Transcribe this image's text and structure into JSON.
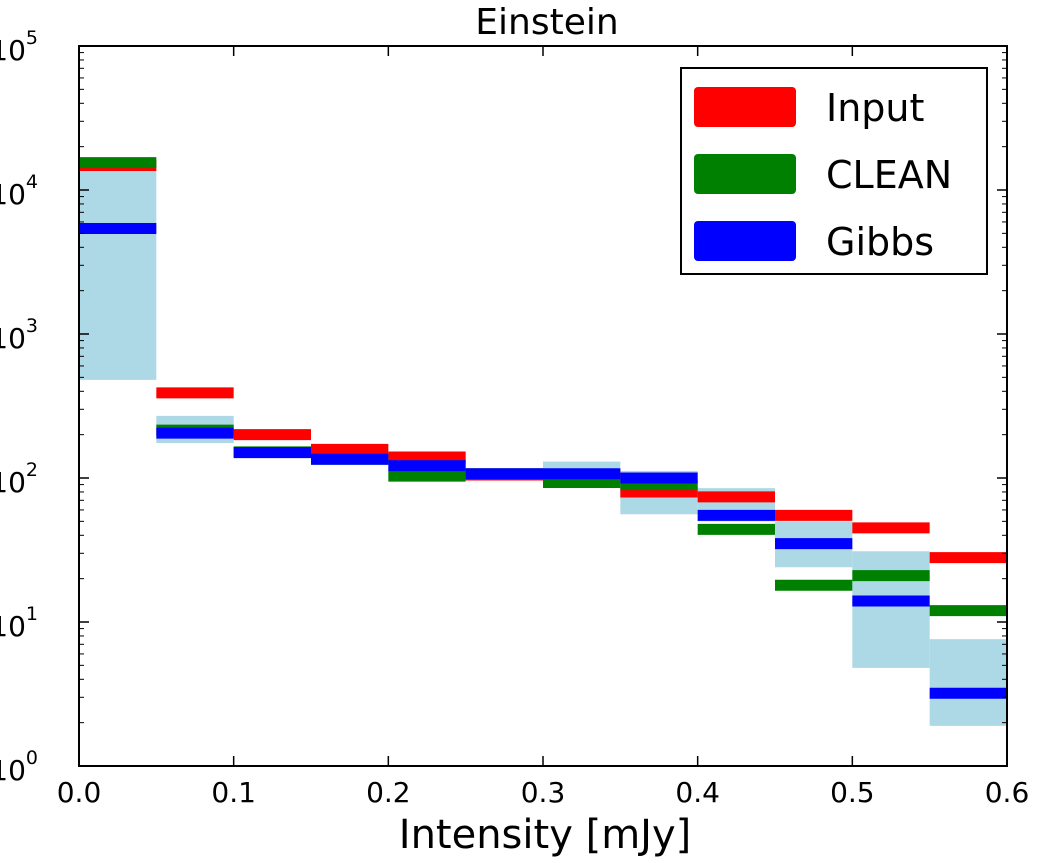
{
  "chart_data": {
    "type": "step-histogram",
    "title": "Einstein",
    "xlabel": "Intensity [mJy]",
    "ylabel": "",
    "yscale": "log",
    "xlim": [
      0.0,
      0.6
    ],
    "ylim": [
      1,
      100000
    ],
    "x_ticks": [
      "0.0",
      "0.1",
      "0.2",
      "0.3",
      "0.4",
      "0.5",
      "0.6"
    ],
    "y_ticks": [
      {
        "base": "10",
        "exp": "0",
        "value": 1
      },
      {
        "base": "10",
        "exp": "1",
        "value": 10
      },
      {
        "base": "10",
        "exp": "2",
        "value": 100
      },
      {
        "base": "10",
        "exp": "3",
        "value": 1000
      },
      {
        "base": "10",
        "exp": "4",
        "value": 10000
      },
      {
        "base": "10",
        "exp": "5",
        "value": 100000
      }
    ],
    "bin_edges": [
      0.0,
      0.05,
      0.1,
      0.15,
      0.2,
      0.25,
      0.3,
      0.35,
      0.4,
      0.45,
      0.5,
      0.55,
      0.6
    ],
    "uncertainty_band": {
      "color": "#add8e6",
      "lower": [
        480,
        175,
        140,
        128,
        112,
        103,
        100,
        56,
        50,
        24,
        4.8,
        1.9
      ],
      "upper": [
        14500,
        270,
        165,
        148,
        135,
        112,
        130,
        112,
        85,
        50,
        31,
        7.6
      ]
    },
    "series": [
      {
        "name": "Input",
        "color": "#ff0000",
        "values": [
          14800,
          390,
          200,
          158,
          140,
          105,
          105,
          80,
          74,
          55,
          45,
          28
        ]
      },
      {
        "name": "CLEAN",
        "color": "#008000",
        "values": [
          15500,
          215,
          152,
          135,
          103,
          107,
          93,
          90,
          44,
          18,
          21,
          12
        ]
      },
      {
        "name": "Gibbs",
        "color": "#0000ff",
        "values": [
          5400,
          205,
          150,
          135,
          122,
          107,
          107,
          100,
          55,
          35,
          14,
          3.2
        ]
      }
    ],
    "legend": {
      "position": "top-right",
      "entries": [
        "Input",
        "CLEAN",
        "Gibbs"
      ]
    }
  }
}
